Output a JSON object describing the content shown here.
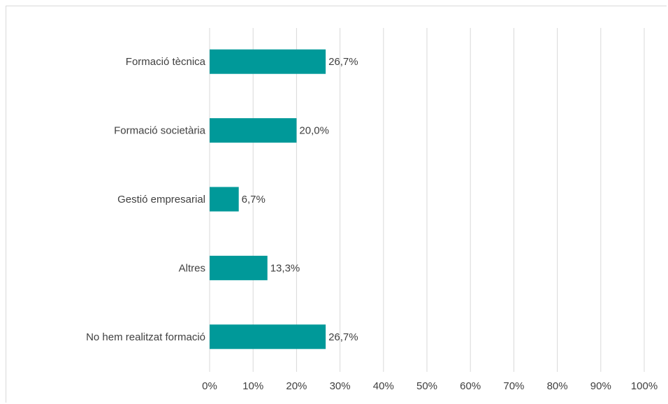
{
  "chart_data": {
    "type": "bar",
    "orientation": "horizontal",
    "title": "",
    "xlabel": "",
    "ylabel": "",
    "categories": [
      "Formació tècnica",
      "Formació societària",
      "Gestió empresarial",
      "Altres",
      "No hem realitzat formació"
    ],
    "values": [
      26.7,
      20.0,
      6.7,
      13.3,
      26.7
    ],
    "data_labels": [
      "26,7%",
      "20,0%",
      "6,7%",
      "13,3%",
      "26,7%"
    ],
    "xlim": [
      0,
      100
    ],
    "x_ticks": [
      0,
      10,
      20,
      30,
      40,
      50,
      60,
      70,
      80,
      90,
      100
    ],
    "x_tick_labels": [
      "0%",
      "10%",
      "20%",
      "30%",
      "40%",
      "50%",
      "60%",
      "70%",
      "80%",
      "90%",
      "100%"
    ],
    "grid": true,
    "legend": "none",
    "bar_color": "#009999",
    "grid_color": "#d9d9d9",
    "text_color": "#404040"
  }
}
